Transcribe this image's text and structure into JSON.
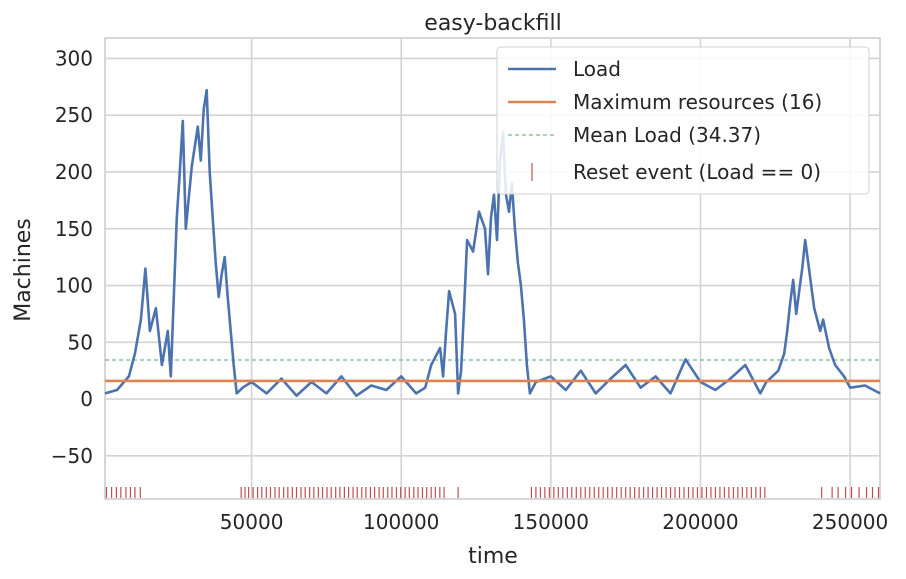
{
  "chart_data": {
    "type": "line",
    "title": "easy-backfill",
    "xlabel": "time",
    "ylabel": "Machines",
    "xlim": [
      1000,
      260000
    ],
    "ylim": [
      -88,
      318
    ],
    "xticks": [
      50000,
      100000,
      150000,
      200000,
      250000
    ],
    "yticks": [
      -50,
      0,
      50,
      100,
      150,
      200,
      250,
      300
    ],
    "grid": true,
    "legend_position": "top-right",
    "series": [
      {
        "name": "Load",
        "color": "#4c72b0",
        "x": [
          1000,
          5000,
          9000,
          11000,
          13000,
          14500,
          16000,
          18000,
          20000,
          22000,
          23000,
          24000,
          25000,
          26000,
          27000,
          28000,
          30000,
          32000,
          33000,
          34000,
          35000,
          36000,
          37000,
          38000,
          39000,
          40000,
          41000,
          42000,
          43000,
          44000,
          45000,
          47000,
          50000,
          55000,
          60000,
          65000,
          70000,
          75000,
          80000,
          85000,
          90000,
          95000,
          100000,
          105000,
          108000,
          110000,
          112000,
          113000,
          114000,
          115000,
          116000,
          118000,
          119000,
          120000,
          121000,
          122000,
          124000,
          126000,
          128000,
          129000,
          130000,
          131000,
          132000,
          133000,
          134000,
          135000,
          136000,
          137000,
          138000,
          139000,
          140000,
          141000,
          142000,
          143000,
          145000,
          150000,
          155000,
          160000,
          165000,
          170000,
          175000,
          180000,
          185000,
          190000,
          195000,
          200000,
          205000,
          210000,
          215000,
          220000,
          222000,
          224000,
          226000,
          228000,
          229000,
          230000,
          231000,
          232000,
          233000,
          234000,
          235000,
          236000,
          238000,
          240000,
          241000,
          243000,
          245000,
          248000,
          250000,
          255000,
          260000
        ],
        "values": [
          5,
          8,
          20,
          40,
          70,
          115,
          60,
          80,
          30,
          60,
          20,
          90,
          160,
          200,
          245,
          150,
          205,
          240,
          210,
          255,
          272,
          200,
          160,
          120,
          90,
          110,
          125,
          90,
          60,
          30,
          5,
          10,
          15,
          5,
          18,
          3,
          15,
          5,
          20,
          3,
          12,
          8,
          20,
          5,
          10,
          30,
          40,
          45,
          20,
          60,
          95,
          75,
          5,
          25,
          80,
          140,
          130,
          165,
          150,
          110,
          160,
          180,
          140,
          210,
          235,
          180,
          165,
          190,
          150,
          120,
          100,
          70,
          30,
          5,
          15,
          20,
          8,
          25,
          5,
          18,
          30,
          10,
          20,
          5,
          35,
          15,
          8,
          18,
          30,
          5,
          15,
          20,
          25,
          40,
          60,
          85,
          105,
          75,
          95,
          115,
          140,
          120,
          80,
          60,
          70,
          45,
          30,
          20,
          10,
          12,
          5
        ]
      },
      {
        "name": "Maximum resources (16)",
        "color": "#dd8452",
        "y": 16
      },
      {
        "name": "Mean Load (34.37)",
        "color": "#55a868",
        "y": 34.37
      },
      {
        "name": "Reset event (Load == 0)",
        "color": "#c44e52",
        "x": [
          1500,
          3200,
          4800,
          6300,
          8000,
          9500,
          11000,
          12800,
          46500,
          47800,
          49000,
          50500,
          52000,
          53400,
          54900,
          56300,
          57800,
          59200,
          60700,
          62100,
          63600,
          65000,
          66500,
          67900,
          69400,
          70800,
          72300,
          73700,
          75200,
          76600,
          78100,
          79500,
          81000,
          82400,
          83900,
          85300,
          86800,
          88200,
          89700,
          91100,
          92600,
          94000,
          95500,
          96900,
          98400,
          99800,
          101300,
          102700,
          104200,
          105600,
          107100,
          108500,
          110000,
          111400,
          112900,
          114300,
          119000,
          143500,
          145000,
          146500,
          148000,
          149500,
          151000,
          152500,
          154000,
          155500,
          157000,
          158500,
          160000,
          161500,
          163000,
          164500,
          166000,
          167500,
          169000,
          170500,
          172000,
          173500,
          175000,
          176500,
          178000,
          179500,
          181000,
          182500,
          184000,
          185500,
          187000,
          188500,
          190000,
          191500,
          193000,
          194500,
          196000,
          197500,
          199000,
          200500,
          202000,
          203500,
          205000,
          206500,
          208000,
          209500,
          211000,
          212500,
          214000,
          215500,
          217000,
          218500,
          220000,
          221500,
          240500,
          244000,
          246000,
          248500,
          250500,
          253000,
          255500,
          257500,
          259500
        ]
      }
    ]
  }
}
